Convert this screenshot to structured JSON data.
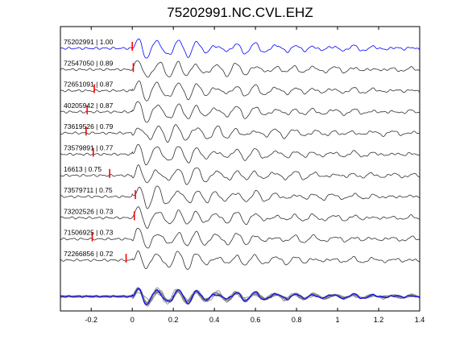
{
  "chart_data": {
    "type": "line",
    "title": "75202991.NC.CVL.EHZ",
    "xlabel": "",
    "ylabel": "",
    "xlim": [
      -0.35,
      1.4
    ],
    "xticks": [
      -0.2,
      0,
      0.2,
      0.4,
      0.6,
      0.8,
      1,
      1.2,
      1.4
    ],
    "xtick_labels": [
      "-0.2",
      "0",
      "0.2",
      "0.4",
      "0.6",
      "0.8",
      "1",
      "1.2",
      "1.4"
    ],
    "grid": false,
    "series": [
      {
        "name": "75202991 | 1.00",
        "event_id": "75202991",
        "correlation": 1.0,
        "pick_time": 0.0,
        "color": "#0000ff"
      },
      {
        "name": "72547050 | 0.89",
        "event_id": "72547050",
        "correlation": 0.89,
        "pick_time": 0.005,
        "color": "#2f2f2f"
      },
      {
        "name": "72651091 | 0.87",
        "event_id": "72651091",
        "correlation": 0.87,
        "pick_time": -0.185,
        "color": "#2f2f2f"
      },
      {
        "name": "40205942 | 0.87",
        "event_id": "40205942",
        "correlation": 0.87,
        "pick_time": -0.22,
        "color": "#2f2f2f"
      },
      {
        "name": "73619526 | 0.79",
        "event_id": "73619526",
        "correlation": 0.79,
        "pick_time": -0.225,
        "color": "#2f2f2f"
      },
      {
        "name": "73579891 | 0.77",
        "event_id": "73579891",
        "correlation": 0.77,
        "pick_time": -0.19,
        "color": "#2f2f2f"
      },
      {
        "name": "16613 | 0.75",
        "event_id": "16613",
        "correlation": 0.75,
        "pick_time": -0.11,
        "color": "#2f2f2f"
      },
      {
        "name": "73579711 | 0.75",
        "event_id": "73579711",
        "correlation": 0.75,
        "pick_time": 0.015,
        "color": "#2f2f2f"
      },
      {
        "name": "73202526 | 0.73",
        "event_id": "73202526",
        "correlation": 0.73,
        "pick_time": 0.01,
        "color": "#2f2f2f"
      },
      {
        "name": "71506925 | 0.73",
        "event_id": "71506925",
        "correlation": 0.73,
        "pick_time": -0.195,
        "color": "#2f2f2f"
      },
      {
        "name": "72266856 | 0.72",
        "event_id": "72266856",
        "correlation": 0.72,
        "pick_time": -0.03,
        "color": "#2f2f2f"
      }
    ],
    "stack": {
      "reference_color": "#0000ff",
      "others_color": "#7f7f7f"
    },
    "pick_marker_color": "#ff0000"
  }
}
